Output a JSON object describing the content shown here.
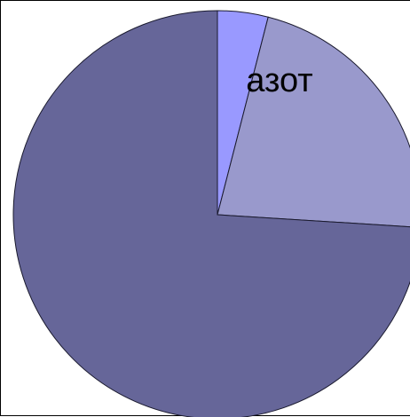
{
  "chart_data": {
    "type": "pie",
    "start": "12 o'clock",
    "direction": "clockwise",
    "slices": [
      {
        "label": "",
        "value": 4,
        "color": "#9999ff"
      },
      {
        "label": "азот",
        "value": 22,
        "color": "#9999cc"
      },
      {
        "label": "",
        "value": 74,
        "color": "#666699"
      }
    ],
    "legend": "none"
  }
}
